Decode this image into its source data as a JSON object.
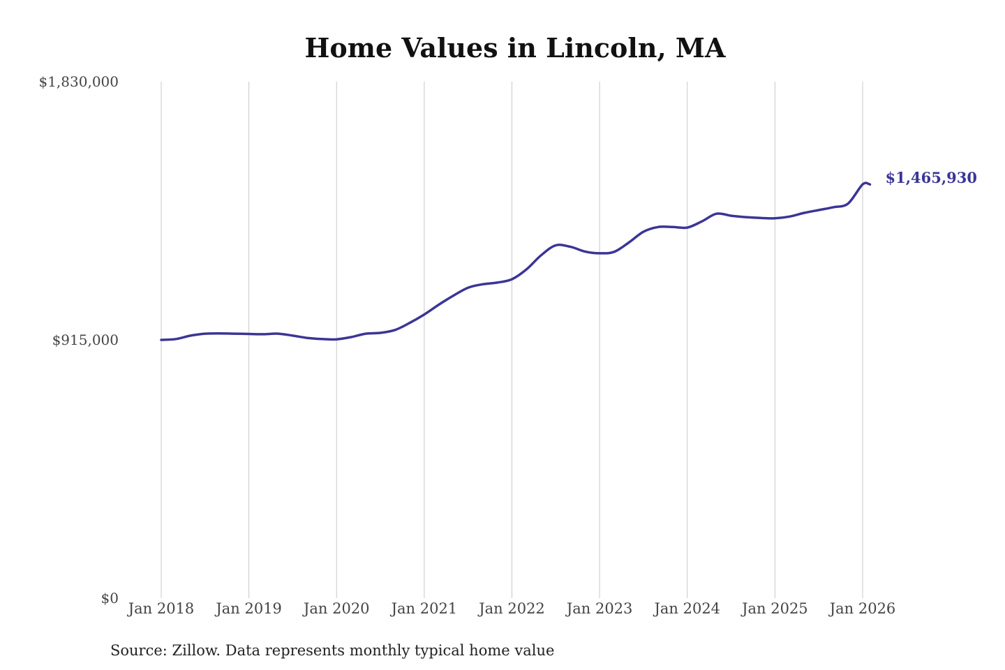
{
  "chart_data": {
    "type": "line",
    "title": "Home Values in Lincoln, MA",
    "xlabel": "",
    "ylabel": "",
    "x_ticks": [
      "Jan 2018",
      "Jan 2019",
      "Jan 2020",
      "Jan 2021",
      "Jan 2022",
      "Jan 2023",
      "Jan 2024",
      "Jan 2025",
      "Jan 2026"
    ],
    "y_ticks": [
      {
        "value": 0,
        "label": "$0"
      },
      {
        "value": 915000,
        "label": "$915,000"
      },
      {
        "value": 1830000,
        "label": "$1,830,000"
      }
    ],
    "ylim": [
      0,
      1830000
    ],
    "x_range": [
      "2018-01",
      "2026-01"
    ],
    "grid": "vertical",
    "series": [
      {
        "color": "#3b3596",
        "end_label": "$1,465,930",
        "points": [
          [
            "2018-01",
            915000
          ],
          [
            "2018-03",
            918000
          ],
          [
            "2018-05",
            930000
          ],
          [
            "2018-07",
            937000
          ],
          [
            "2018-09",
            938000
          ],
          [
            "2018-11",
            937000
          ],
          [
            "2019-01",
            936000
          ],
          [
            "2019-03",
            935000
          ],
          [
            "2019-05",
            937000
          ],
          [
            "2019-07",
            930000
          ],
          [
            "2019-09",
            922000
          ],
          [
            "2019-11",
            918000
          ],
          [
            "2020-01",
            917000
          ],
          [
            "2020-03",
            925000
          ],
          [
            "2020-05",
            937000
          ],
          [
            "2020-07",
            940000
          ],
          [
            "2020-09",
            950000
          ],
          [
            "2020-11",
            975000
          ],
          [
            "2021-01",
            1005000
          ],
          [
            "2021-03",
            1040000
          ],
          [
            "2021-05",
            1072000
          ],
          [
            "2021-07",
            1100000
          ],
          [
            "2021-09",
            1112000
          ],
          [
            "2021-11",
            1118000
          ],
          [
            "2022-01",
            1130000
          ],
          [
            "2022-03",
            1165000
          ],
          [
            "2022-05",
            1215000
          ],
          [
            "2022-07",
            1250000
          ],
          [
            "2022-09",
            1245000
          ],
          [
            "2022-11",
            1228000
          ],
          [
            "2023-01",
            1222000
          ],
          [
            "2023-03",
            1227000
          ],
          [
            "2023-05",
            1260000
          ],
          [
            "2023-07",
            1298000
          ],
          [
            "2023-09",
            1315000
          ],
          [
            "2023-11",
            1315000
          ],
          [
            "2024-01",
            1313000
          ],
          [
            "2024-03",
            1335000
          ],
          [
            "2024-05",
            1362000
          ],
          [
            "2024-07",
            1355000
          ],
          [
            "2024-09",
            1350000
          ],
          [
            "2024-11",
            1347000
          ],
          [
            "2025-01",
            1346000
          ],
          [
            "2025-03",
            1352000
          ],
          [
            "2025-05",
            1365000
          ],
          [
            "2025-07",
            1375000
          ],
          [
            "2025-09",
            1385000
          ],
          [
            "2025-11",
            1398000
          ],
          [
            "2026-01",
            1465930
          ],
          [
            "2026-02",
            1465930
          ]
        ]
      }
    ]
  },
  "source": "Source: Zillow. Data represents monthly typical home value"
}
